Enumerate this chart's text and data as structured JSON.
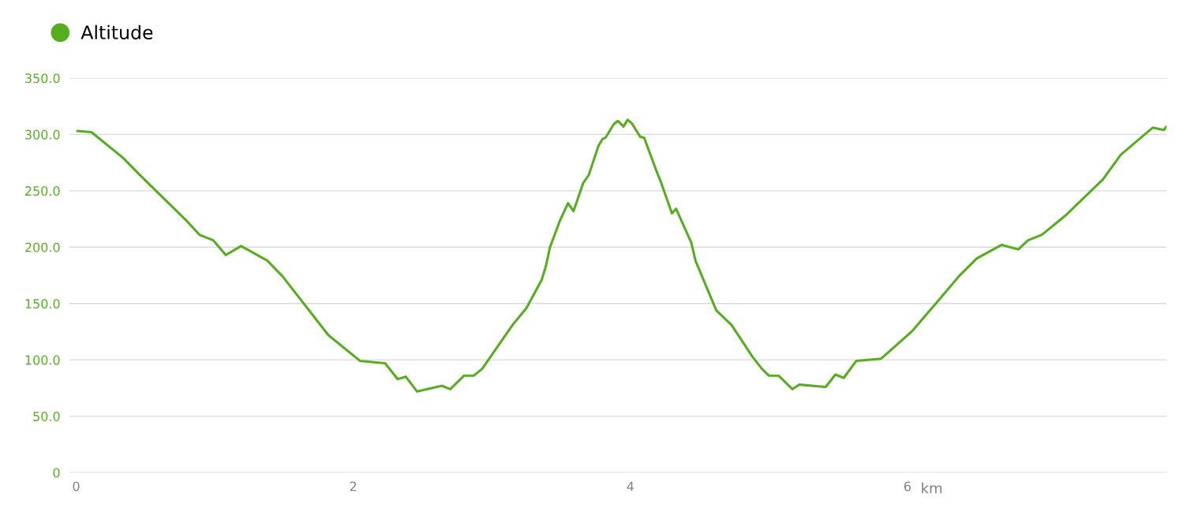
{
  "chart_data": {
    "type": "line",
    "xlabel": "km",
    "x": [
      0.01,
      0.11,
      0.34,
      0.46,
      0.8,
      0.89,
      0.99,
      1.08,
      1.19,
      1.38,
      1.49,
      1.82,
      2.05,
      2.23,
      2.32,
      2.38,
      2.46,
      2.64,
      2.7,
      2.8,
      2.87,
      2.93,
      3.15,
      3.25,
      3.36,
      3.39,
      3.42,
      3.49,
      3.55,
      3.59,
      3.66,
      3.7,
      3.77,
      3.8,
      3.82,
      3.88,
      3.91,
      3.95,
      3.98,
      4.01,
      4.07,
      4.1,
      4.19,
      4.22,
      4.3,
      4.33,
      4.44,
      4.47,
      4.62,
      4.73,
      4.88,
      4.95,
      5.0,
      5.07,
      5.17,
      5.22,
      5.41,
      5.48,
      5.54,
      5.63,
      5.81,
      6.03,
      6.24,
      6.37,
      6.5,
      6.68,
      6.8,
      6.87,
      6.97,
      7.14,
      7.41,
      7.54,
      7.77,
      7.85,
      7.87
    ],
    "series": [
      {
        "name": "Altitude",
        "color": "#56ae1e",
        "values": [
          303,
          302,
          279,
          264,
          223,
          211,
          206,
          193,
          201,
          188,
          174,
          122,
          99,
          97,
          83,
          85,
          72,
          77,
          74,
          86,
          86,
          92,
          131,
          146,
          171,
          183,
          200,
          223,
          239,
          232,
          257,
          264,
          290,
          296,
          297,
          309,
          312,
          307,
          313,
          310,
          298,
          297,
          267,
          258,
          230,
          234,
          204,
          188,
          144,
          131,
          103,
          92,
          86,
          86,
          74,
          78,
          76,
          87,
          84,
          99,
          101,
          125,
          155,
          174,
          190,
          202,
          198,
          206,
          211,
          228,
          260,
          282,
          306,
          304,
          307
        ]
      }
    ],
    "xlim": [
      -0.05,
      7.87
    ],
    "ylim": [
      0,
      350
    ],
    "xticks": [
      0,
      2,
      4,
      6
    ],
    "yticks": [
      {
        "value": 0,
        "label": "0"
      },
      {
        "value": 50,
        "label": "50.0"
      },
      {
        "value": 100,
        "label": "100.0"
      },
      {
        "value": 150,
        "label": "150.0"
      },
      {
        "value": 200,
        "label": "200.0"
      },
      {
        "value": 250,
        "label": "250.0"
      },
      {
        "value": 300,
        "label": "300.0"
      },
      {
        "value": 350,
        "label": "350.0"
      }
    ],
    "grid": "y",
    "legend": "top left",
    "marker": "none",
    "line_style": "solid"
  }
}
